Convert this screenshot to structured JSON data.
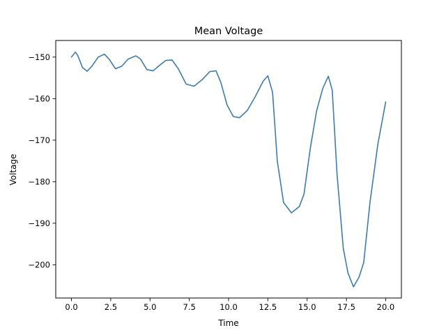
{
  "chart_data": {
    "type": "line",
    "title": "Mean Voltage",
    "xlabel": "Time",
    "ylabel": "Voltage",
    "xlim": [
      -1.0,
      21.0
    ],
    "ylim": [
      -208.0,
      -146.0
    ],
    "xticks": [
      0.0,
      2.5,
      5.0,
      7.5,
      10.0,
      12.5,
      15.0,
      17.5,
      20.0
    ],
    "xtick_labels": [
      "0.0",
      "2.5",
      "5.0",
      "7.5",
      "10.0",
      "12.5",
      "15.0",
      "17.5",
      "20.0"
    ],
    "yticks": [
      -200,
      -190,
      -180,
      -170,
      -160,
      -150
    ],
    "ytick_labels": [
      "−200",
      "−190",
      "−180",
      "−170",
      "−160",
      "−150"
    ],
    "grid": false,
    "line_color": "#3b7bb0",
    "series": [
      {
        "x": [
          0.0,
          0.25,
          0.4,
          0.7,
          1.0,
          1.3,
          1.7,
          2.1,
          2.4,
          2.8,
          3.2,
          3.6,
          4.1,
          4.4,
          4.8,
          5.2,
          5.6,
          6.0,
          6.4,
          6.8,
          7.3,
          7.8,
          8.3,
          8.8,
          9.2,
          9.5,
          9.9,
          10.3,
          10.7,
          11.2,
          11.7,
          12.2,
          12.5,
          12.8,
          13.1,
          13.5,
          14.0,
          14.5,
          14.8,
          15.2,
          15.6,
          16.0,
          16.35,
          16.6,
          16.9,
          17.3,
          17.6,
          17.95,
          18.3,
          18.6,
          19.0,
          19.5,
          20.0
        ],
        "y": [
          -150.0,
          -148.8,
          -149.6,
          -152.5,
          -153.4,
          -152.2,
          -150.0,
          -149.3,
          -150.5,
          -152.8,
          -152.2,
          -150.5,
          -149.7,
          -150.5,
          -153.0,
          -153.3,
          -152.0,
          -150.8,
          -150.7,
          -152.8,
          -156.5,
          -157.0,
          -155.5,
          -153.5,
          -153.3,
          -156.0,
          -161.5,
          -164.3,
          -164.6,
          -162.8,
          -159.5,
          -155.8,
          -154.5,
          -158.5,
          -175.0,
          -185.0,
          -187.5,
          -186.0,
          -183.0,
          -172.0,
          -163.0,
          -157.5,
          -154.6,
          -158.0,
          -178.0,
          -196.0,
          -202.0,
          -205.3,
          -203.0,
          -199.5,
          -185.0,
          -171.0,
          -160.8
        ]
      }
    ]
  }
}
